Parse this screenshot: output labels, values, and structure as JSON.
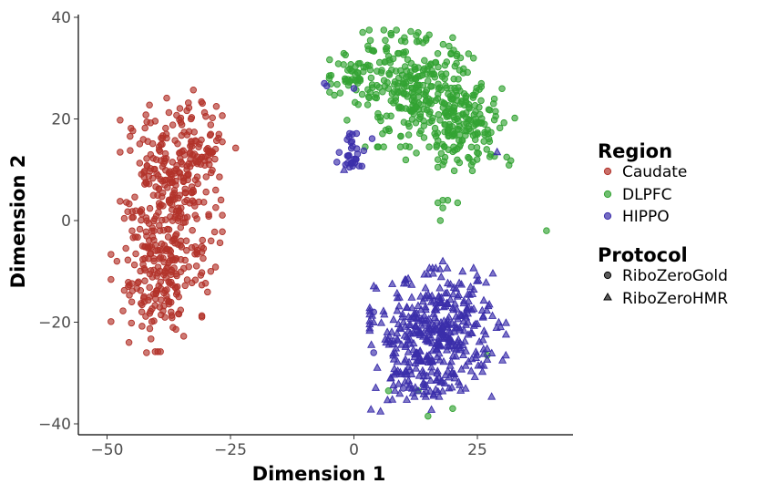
{
  "chart_data": {
    "type": "scatter",
    "xlabel": "Dimension 1",
    "ylabel": "Dimension 2",
    "xlim": [
      -55,
      44
    ],
    "ylim": [
      -42,
      41
    ],
    "x_ticks": [
      -50,
      -25,
      0,
      25
    ],
    "x_tick_labels": [
      "−50",
      "−25",
      "0",
      "25"
    ],
    "y_ticks": [
      -40,
      -20,
      0,
      20,
      40
    ],
    "y_tick_labels": [
      "−40",
      "−20",
      "0",
      "20",
      "40"
    ],
    "grid": false,
    "legend_position": "right",
    "legends": [
      {
        "title": "Region",
        "entries": [
          {
            "label": "Caudate",
            "color": "#b2322a"
          },
          {
            "label": "DLPFC",
            "color": "#33a333"
          },
          {
            "label": "HIPPO",
            "color": "#3b2eaa"
          }
        ]
      },
      {
        "title": "Protocol",
        "entries": [
          {
            "label": "RiboZeroGold",
            "shape": "circle"
          },
          {
            "label": "RiboZeroHMR",
            "shape": "triangle"
          }
        ]
      }
    ],
    "series": [
      {
        "region": "Caudate",
        "protocol": "RiboZeroGold",
        "color": "#b2322a",
        "marker": "circle",
        "clusters": [
          {
            "center": [
              -37,
              5
            ],
            "sd": [
              4.5,
              9
            ],
            "n": 280
          },
          {
            "center": [
              -40,
              -12
            ],
            "sd": [
              4,
              6
            ],
            "n": 150
          },
          {
            "center": [
              -32,
              13
            ],
            "sd": [
              3.5,
              4
            ],
            "n": 60
          }
        ],
        "points": [
          [
            -33,
            20
          ],
          [
            -30,
            20.5
          ],
          [
            -42,
            -26
          ],
          [
            -48,
            -8
          ],
          [
            -45,
            -16
          ],
          [
            -29,
            17
          ],
          [
            -28,
            6
          ],
          [
            -29,
            -10
          ],
          [
            -38,
            17
          ]
        ]
      },
      {
        "region": "DLPFC",
        "protocol": "RiboZeroGold",
        "color": "#33a333",
        "marker": "circle",
        "clusters": [
          {
            "center": [
              12,
              26
            ],
            "sd": [
              6,
              5
            ],
            "n": 260
          },
          {
            "center": [
              22,
              19
            ],
            "sd": [
              5,
              4
            ],
            "n": 170
          },
          {
            "center": [
              0,
              29
            ],
            "sd": [
              3,
              2.5
            ],
            "n": 45
          }
        ],
        "points": [
          [
            18,
            4
          ],
          [
            17,
            3.5
          ],
          [
            19,
            4
          ],
          [
            18,
            2.5
          ],
          [
            17.5,
            0
          ],
          [
            21,
            3.5
          ],
          [
            39,
            -2
          ],
          [
            -5,
            28
          ],
          [
            13,
            37
          ],
          [
            14,
            35
          ],
          [
            20,
            36
          ],
          [
            18,
            11
          ],
          [
            17,
            10.5
          ],
          [
            17,
            12
          ],
          [
            7,
            -33.5
          ],
          [
            13,
            -33.5
          ],
          [
            15,
            -38.5
          ],
          [
            27,
            -26.5
          ],
          [
            20,
            -37
          ]
        ]
      },
      {
        "region": "HIPPO",
        "protocol": "RiboZeroGold",
        "color": "#3b2eaa",
        "marker": "circle",
        "clusters": [
          {
            "center": [
              0,
              13
            ],
            "sd": [
              1.6,
              1.8
            ],
            "n": 30
          }
        ],
        "points": [
          [
            -6,
            27
          ],
          [
            -5.5,
            26.5
          ],
          [
            0,
            26
          ],
          [
            -1,
            16.5
          ],
          [
            4,
            -18
          ],
          [
            4,
            -26
          ],
          [
            10,
            -33
          ]
        ]
      },
      {
        "region": "HIPPO",
        "protocol": "RiboZeroHMR",
        "color": "#3b2eaa",
        "marker": "triangle",
        "clusters": [
          {
            "center": [
              17,
              -22
            ],
            "sd": [
              6,
              5.5
            ],
            "n": 380
          },
          {
            "center": [
              12,
              -32
            ],
            "sd": [
              4,
              3
            ],
            "n": 60
          }
        ],
        "points": [
          [
            -2,
            10
          ],
          [
            29,
            13.5
          ],
          [
            18,
            -8
          ],
          [
            22,
            -10
          ],
          [
            4,
            -20
          ]
        ]
      }
    ]
  }
}
